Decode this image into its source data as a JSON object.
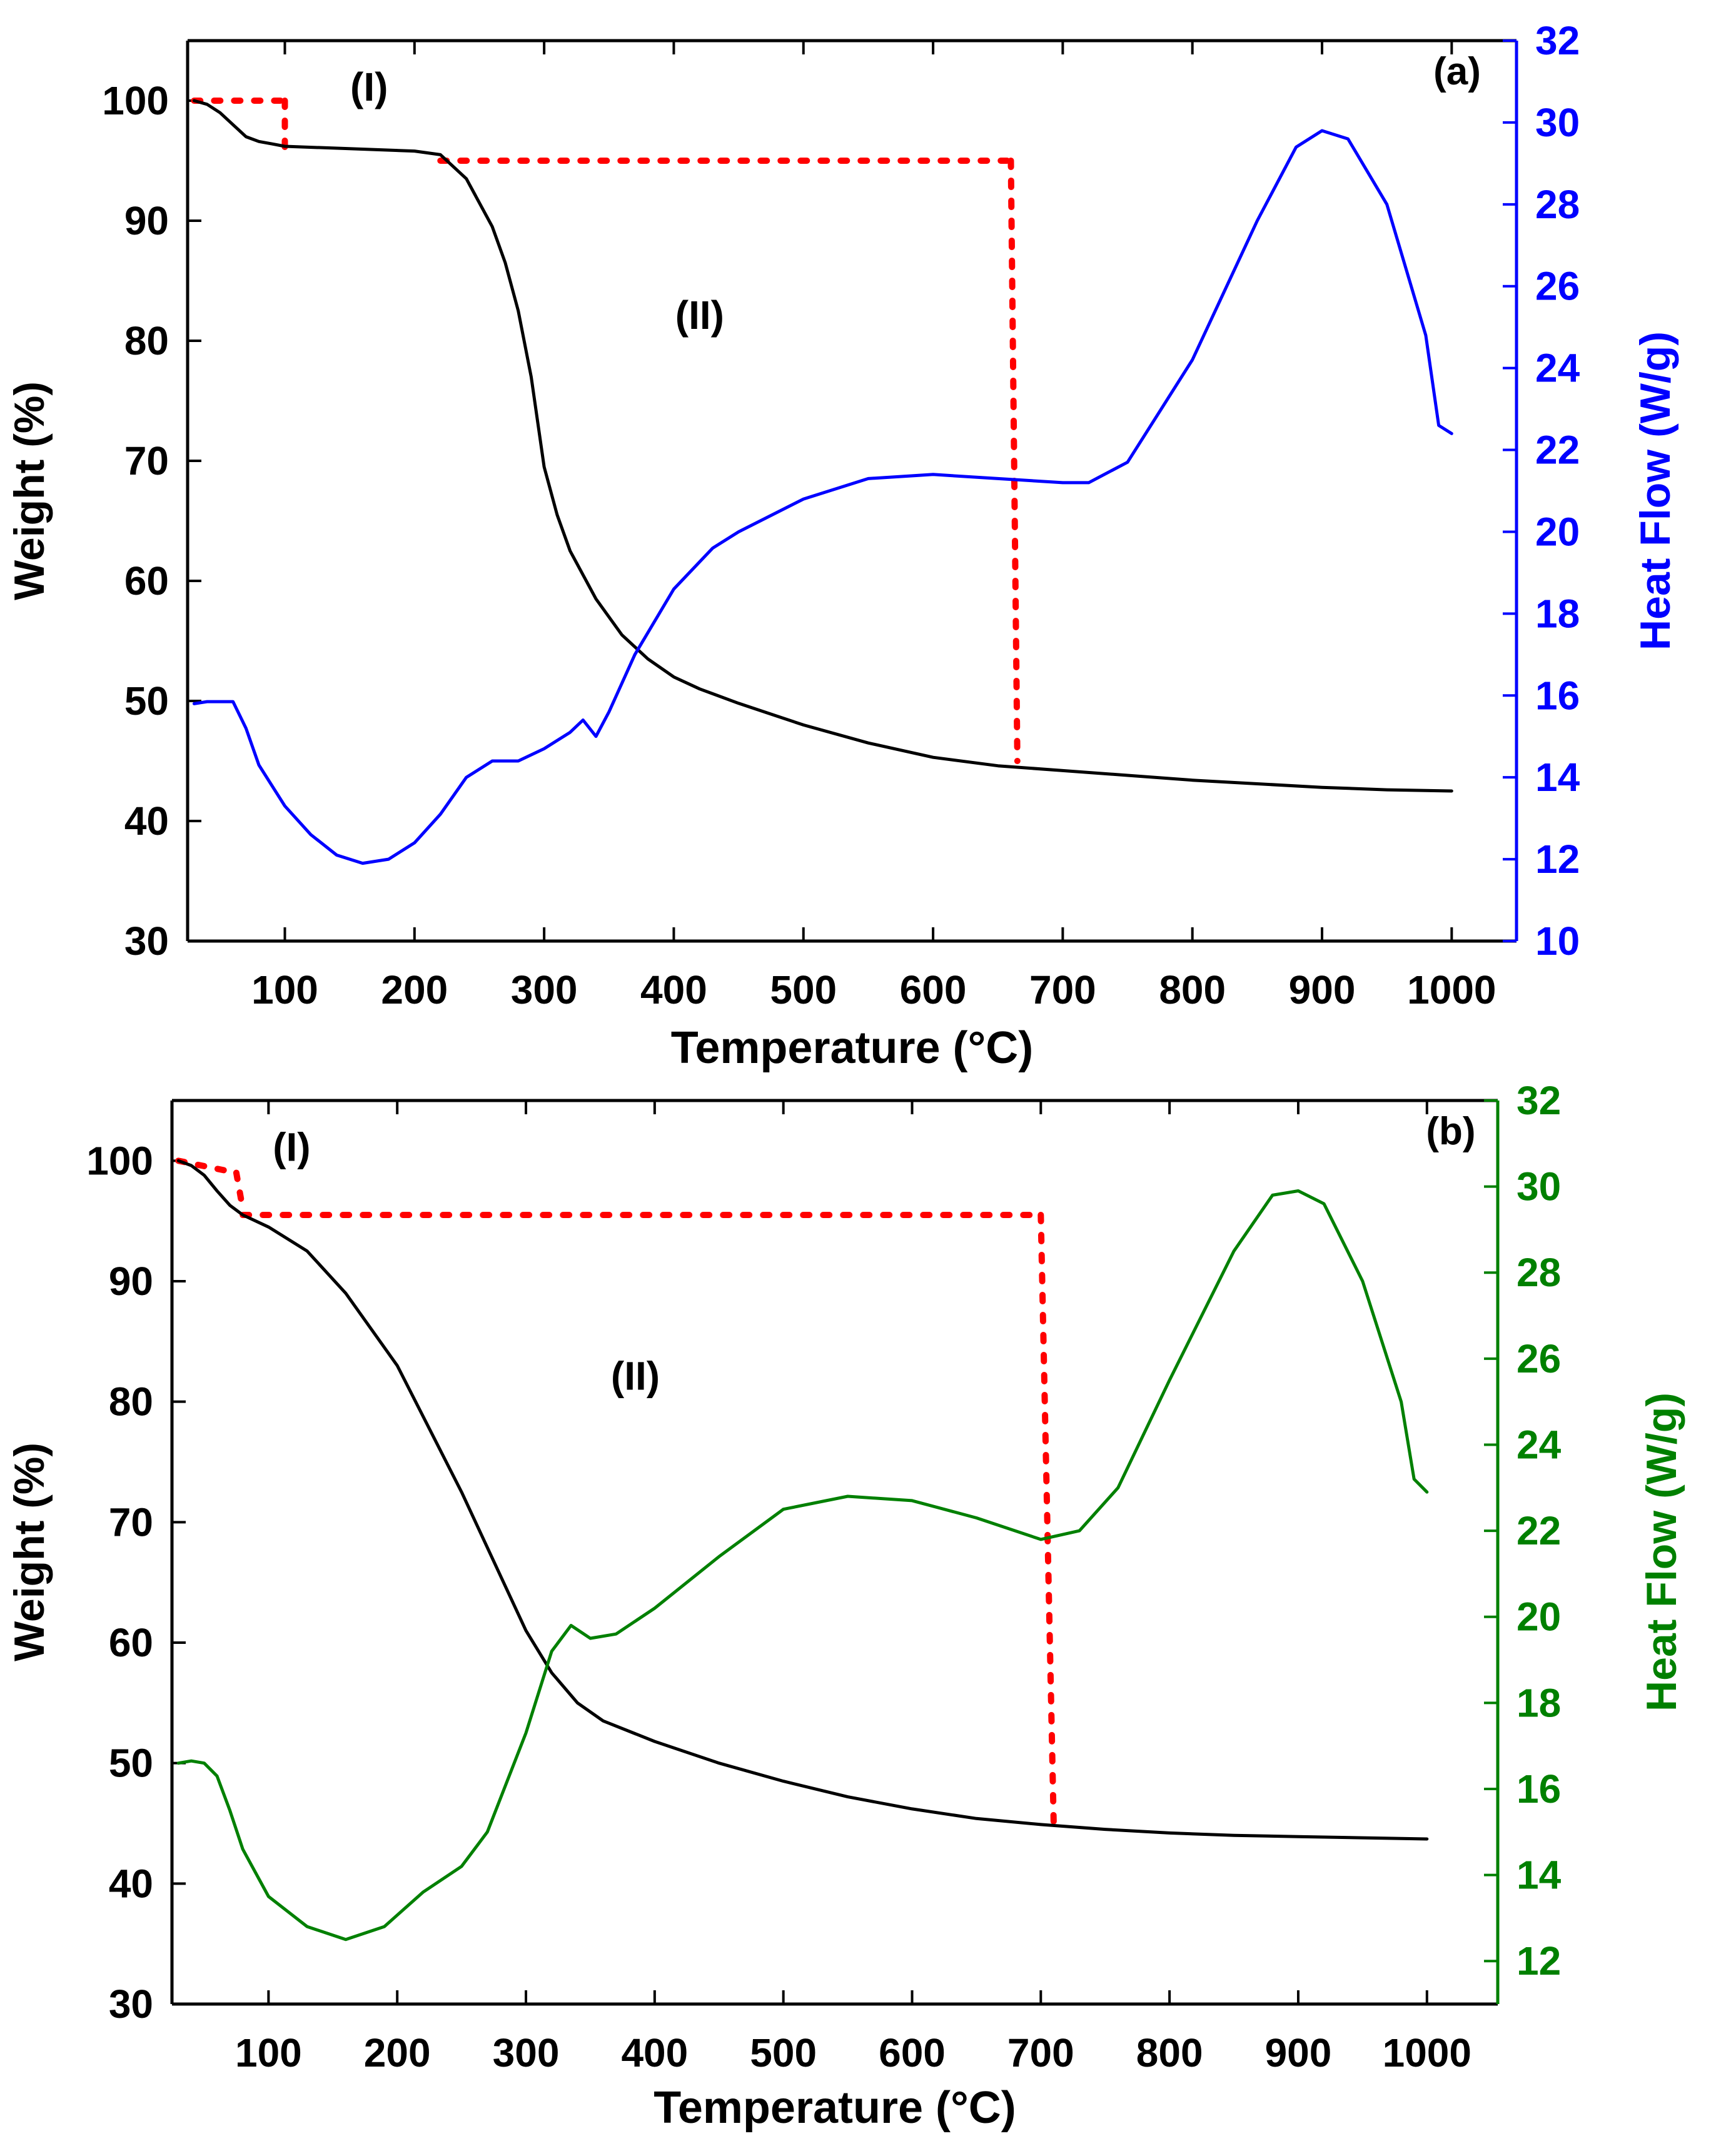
{
  "colors": {
    "weight": "#000000",
    "heat_flow_a": "#0000ff",
    "heat_flow_b": "#008000",
    "stage_marker": "#ff0000",
    "axes": "#000000"
  },
  "chart_data": [
    {
      "type": "line",
      "panel_label": "(a)",
      "title": "",
      "xlabel": "Temperature (°C)",
      "ylabel": "Weight (%)",
      "y2label": "Heat Flow (W/g)",
      "xlim": [
        25,
        1050
      ],
      "ylim": [
        30,
        105
      ],
      "y2lim": [
        10,
        32
      ],
      "xticks": [
        100,
        200,
        300,
        400,
        500,
        600,
        700,
        800,
        900,
        1000
      ],
      "yticks": [
        30,
        40,
        50,
        60,
        70,
        80,
        90,
        100
      ],
      "y2ticks": [
        10,
        12,
        14,
        16,
        18,
        20,
        22,
        24,
        26,
        28,
        30,
        32
      ],
      "stage_labels": [
        {
          "text": "(I)",
          "x": 165,
          "y": 100
        },
        {
          "text": "(II)",
          "x": 420,
          "y": 81
        }
      ],
      "stage_markers": [
        {
          "x": [
            30,
            100
          ],
          "y": [
            100,
            100
          ]
        },
        {
          "x": [
            100,
            100
          ],
          "y": [
            100,
            96
          ]
        },
        {
          "x": [
            220,
            660
          ],
          "y": [
            95,
            95
          ]
        },
        {
          "x": [
            660,
            665
          ],
          "y": [
            95,
            45
          ]
        }
      ],
      "series": [
        {
          "name": "Weight",
          "axis": "left",
          "color": "#000000",
          "x": [
            30,
            40,
            50,
            60,
            70,
            80,
            90,
            100,
            150,
            200,
            220,
            240,
            260,
            270,
            280,
            290,
            300,
            310,
            320,
            340,
            360,
            380,
            400,
            420,
            450,
            500,
            550,
            600,
            650,
            700,
            750,
            800,
            850,
            900,
            950,
            1000
          ],
          "y": [
            100,
            99.7,
            99,
            98,
            97,
            96.6,
            96.4,
            96.2,
            96,
            95.8,
            95.5,
            93.5,
            89.5,
            86.5,
            82.5,
            77,
            69.5,
            65.5,
            62.5,
            58.5,
            55.5,
            53.5,
            52,
            51,
            49.8,
            48,
            46.5,
            45.3,
            44.6,
            44.2,
            43.8,
            43.4,
            43.1,
            42.8,
            42.6,
            42.5
          ]
        },
        {
          "name": "Heat Flow",
          "axis": "right",
          "color": "#0000ff",
          "x": [
            30,
            40,
            50,
            60,
            70,
            80,
            100,
            120,
            140,
            160,
            180,
            200,
            220,
            240,
            260,
            280,
            300,
            320,
            330,
            340,
            350,
            370,
            400,
            430,
            450,
            500,
            550,
            600,
            650,
            700,
            720,
            750,
            800,
            850,
            880,
            900,
            920,
            950,
            980,
            990,
            1000
          ],
          "y": [
            15.8,
            15.85,
            15.85,
            15.85,
            15.2,
            14.3,
            13.3,
            12.6,
            12.1,
            11.9,
            12.0,
            12.4,
            13.1,
            14.0,
            14.4,
            14.4,
            14.7,
            15.1,
            15.4,
            15.0,
            15.6,
            17.0,
            18.6,
            19.6,
            20.0,
            20.8,
            21.3,
            21.4,
            21.3,
            21.2,
            21.2,
            21.7,
            24.2,
            27.6,
            29.4,
            29.8,
            29.6,
            28.0,
            24.8,
            22.6,
            22.4
          ]
        }
      ]
    },
    {
      "type": "line",
      "panel_label": "(b)",
      "title": "",
      "xlabel": "Temperature (°C)",
      "ylabel": "Weight (%)",
      "y2label": "Heat Flow (W/g)",
      "xlim": [
        25,
        1055
      ],
      "ylim": [
        30,
        105
      ],
      "y2lim": [
        11,
        32
      ],
      "xticks": [
        100,
        200,
        300,
        400,
        500,
        600,
        700,
        800,
        900,
        1000
      ],
      "yticks": [
        30,
        40,
        50,
        60,
        70,
        80,
        90,
        100
      ],
      "y2ticks": [
        12,
        14,
        16,
        18,
        20,
        22,
        24,
        26,
        28,
        30,
        32
      ],
      "stage_labels": [
        {
          "text": "(I)",
          "x": 118,
          "y": 100
        },
        {
          "text": "(II)",
          "x": 385,
          "y": 81
        }
      ],
      "stage_markers": [
        {
          "x": [
            30,
            75
          ],
          "y": [
            100,
            99
          ]
        },
        {
          "x": [
            75,
            80
          ],
          "y": [
            99,
            96
          ]
        },
        {
          "x": [
            80,
            700
          ],
          "y": [
            95.5,
            95.5
          ]
        },
        {
          "x": [
            700,
            710
          ],
          "y": [
            95.5,
            45
          ]
        }
      ],
      "series": [
        {
          "name": "Weight",
          "axis": "left",
          "color": "#000000",
          "x": [
            30,
            40,
            50,
            60,
            70,
            80,
            100,
            130,
            160,
            200,
            250,
            300,
            320,
            340,
            360,
            400,
            450,
            500,
            550,
            600,
            650,
            700,
            750,
            800,
            850,
            900,
            950,
            1000
          ],
          "y": [
            100,
            99.6,
            98.8,
            97.5,
            96.3,
            95.5,
            94.5,
            92.5,
            89,
            83,
            72.5,
            61,
            57.5,
            55,
            53.5,
            51.8,
            50,
            48.5,
            47.2,
            46.2,
            45.4,
            44.9,
            44.5,
            44.2,
            44.0,
            43.9,
            43.8,
            43.7
          ]
        },
        {
          "name": "Heat Flow",
          "axis": "right",
          "color": "#008000",
          "x": [
            30,
            40,
            50,
            60,
            70,
            80,
            100,
            130,
            160,
            190,
            220,
            250,
            270,
            300,
            320,
            335,
            350,
            370,
            400,
            450,
            500,
            550,
            600,
            650,
            700,
            730,
            760,
            800,
            850,
            880,
            900,
            920,
            950,
            980,
            990,
            1000
          ],
          "y": [
            16.6,
            16.65,
            16.6,
            16.3,
            15.5,
            14.6,
            13.5,
            12.8,
            12.5,
            12.8,
            13.6,
            14.2,
            15.0,
            17.3,
            19.2,
            19.8,
            19.5,
            19.6,
            20.2,
            21.4,
            22.5,
            22.8,
            22.7,
            22.3,
            21.8,
            22.0,
            23.0,
            25.5,
            28.5,
            29.8,
            29.9,
            29.6,
            27.8,
            25.0,
            23.2,
            22.9
          ]
        }
      ]
    }
  ]
}
